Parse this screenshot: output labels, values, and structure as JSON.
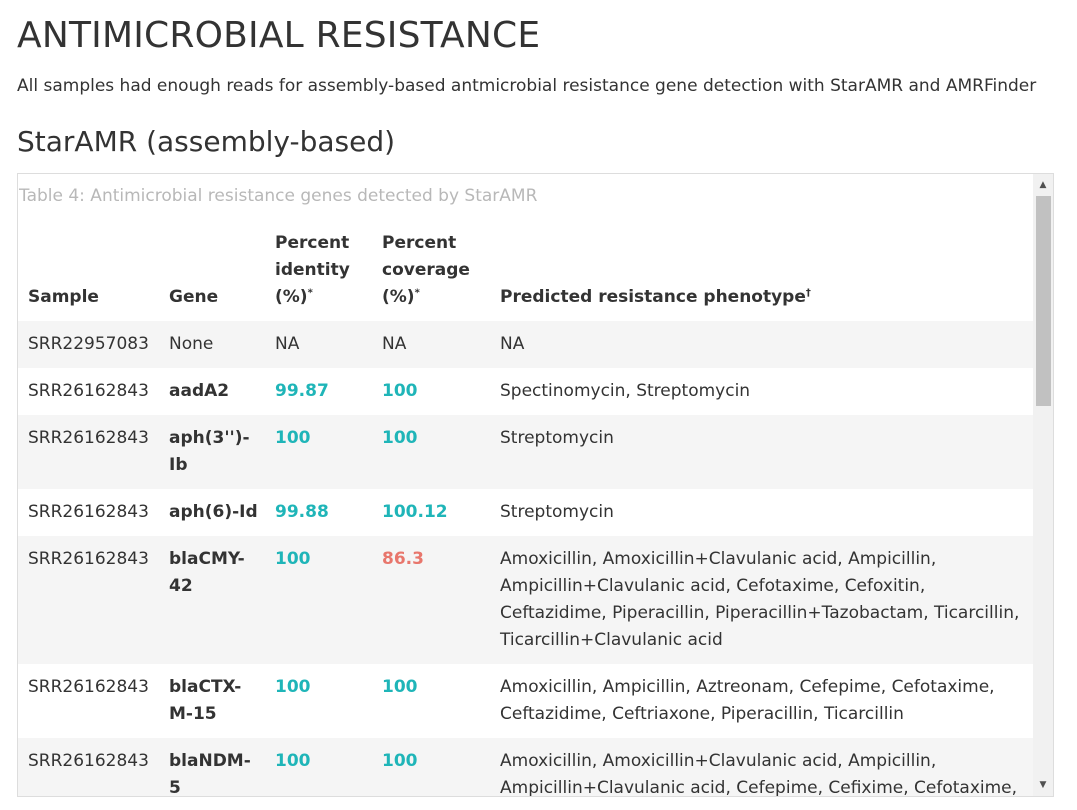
{
  "main_title": "ANTIMICROBIAL RESISTANCE",
  "intro": "All samples had enough reads for assembly-based antmicrobial resistance gene detection with StarAMR and AMRFinder",
  "section_title": "StarAMR (assembly-based)",
  "table": {
    "caption": "Table 4: Antimicrobial resistance genes detected by StarAMR",
    "headers": {
      "sample": "Sample",
      "gene": "Gene",
      "identity": "Percent identity (%)",
      "identity_mark": "*",
      "coverage": "Percent coverage (%)",
      "coverage_mark": "*",
      "phenotype": "Predicted resistance phenotype",
      "phenotype_mark": "†"
    },
    "rows": [
      {
        "sample": "SRR22957083",
        "gene": "None",
        "identity": "NA",
        "coverage": "NA",
        "phenotype": "NA"
      },
      {
        "sample": "SRR26162843",
        "gene": "aadA2",
        "identity": "99.87",
        "coverage": "100",
        "phenotype": "Spectinomycin, Streptomycin"
      },
      {
        "sample": "SRR26162843",
        "gene": "aph(3'')-Ib",
        "identity": "100",
        "coverage": "100",
        "phenotype": "Streptomycin"
      },
      {
        "sample": "SRR26162843",
        "gene": "aph(6)-Id",
        "identity": "99.88",
        "coverage": "100.12",
        "phenotype": "Streptomycin"
      },
      {
        "sample": "SRR26162843",
        "gene": "blaCMY-42",
        "identity": "100",
        "coverage": "86.3",
        "phenotype": "Amoxicillin, Amoxicillin+Clavulanic acid, Ampicillin, Ampicillin+Clavulanic acid, Cefotaxime, Cefoxitin, Ceftazidime, Piperacillin, Piperacillin+Tazobactam, Ticarcillin, Ticarcillin+Clavulanic acid"
      },
      {
        "sample": "SRR26162843",
        "gene": "blaCTX-M-15",
        "identity": "100",
        "coverage": "100",
        "phenotype": "Amoxicillin, Ampicillin, Aztreonam, Cefepime, Cefotaxime, Ceftazidime, Ceftriaxone, Piperacillin, Ticarcillin"
      },
      {
        "sample": "SRR26162843",
        "gene": "blaNDM-5",
        "identity": "100",
        "coverage": "100",
        "phenotype": "Amoxicillin, Amoxicillin+Clavulanic acid, Ampicillin, Ampicillin+Clavulanic acid, Cefepime, Cefixime, Cefotaxime, Cefoxitin, Ceftazidime, Ertapenem, Imipenem, Meropenem,"
      }
    ]
  },
  "colors": {
    "good_value": "#1fb5b8",
    "low_value": "#e8766c",
    "caption": "#b8b8b8",
    "stripe": "#f5f5f5"
  },
  "icons": {
    "scroll_up": "triangle-up-icon",
    "scroll_down": "triangle-down-icon"
  }
}
